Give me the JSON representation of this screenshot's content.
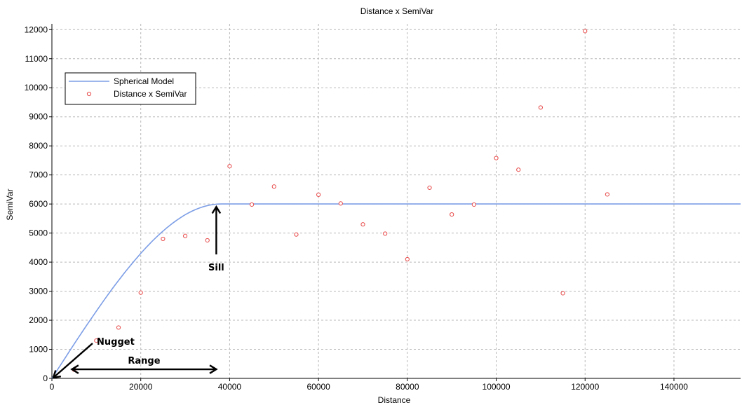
{
  "chart_data": {
    "type": "scatter",
    "title": "Distance x SemiVar",
    "xlabel": "Distance",
    "ylabel": "SemiVar",
    "xlim": [
      0,
      155000
    ],
    "ylim": [
      0,
      12200
    ],
    "xticks": [
      0,
      20000,
      40000,
      60000,
      80000,
      100000,
      120000,
      140000
    ],
    "yticks": [
      0,
      1000,
      2000,
      3000,
      4000,
      5000,
      6000,
      7000,
      8000,
      9000,
      10000,
      11000,
      12000
    ],
    "grid": true,
    "legend_position": "top-left",
    "series": [
      {
        "name": "Spherical Model",
        "kind": "line",
        "color": "#7d9ee6",
        "model": {
          "nugget": 0,
          "sill": 6000,
          "range": 38000
        }
      },
      {
        "name": "Distance x SemiVar",
        "kind": "scatter",
        "color": "#e84a4a",
        "x": [
          5000,
          10000,
          15000,
          20000,
          25000,
          30000,
          35000,
          40000,
          45000,
          50000,
          55000,
          60000,
          65000,
          70000,
          75000,
          80000,
          85000,
          90000,
          95000,
          100000,
          105000,
          110000,
          115000,
          120000,
          125000
        ],
        "y": [
          300,
          1300,
          1750,
          2950,
          4800,
          4900,
          4750,
          7300,
          5980,
          6600,
          4950,
          6320,
          6020,
          5300,
          4980,
          4100,
          6560,
          5640,
          5980,
          7580,
          7180,
          9320,
          2930,
          11950,
          6330
        ]
      }
    ],
    "annotations": [
      {
        "id": "sill",
        "text": "Sill",
        "x": 37000,
        "y": 6000
      },
      {
        "id": "nugget",
        "text": "Nugget",
        "x": 0,
        "y": 0
      },
      {
        "id": "range",
        "text": "Range",
        "x_from": 4500,
        "x_to": 37000,
        "y": 240
      }
    ]
  }
}
